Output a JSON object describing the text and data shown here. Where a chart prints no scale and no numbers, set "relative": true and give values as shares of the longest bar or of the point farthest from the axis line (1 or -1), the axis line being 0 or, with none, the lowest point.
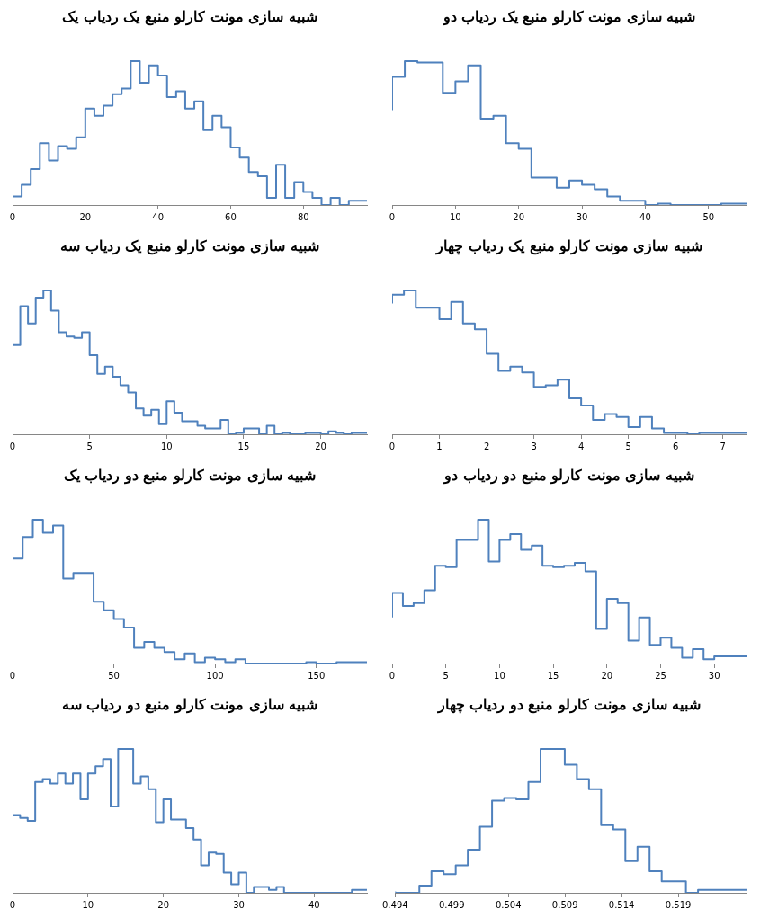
{
  "chart_data": [
    {
      "type": "step",
      "title": "شبیه سازی مونت کارلو منبع یک ردیاب یک",
      "relative": true,
      "color": "#4f81bd",
      "xlim": [
        0,
        97.5
      ],
      "xticks": [
        0,
        20,
        40,
        60,
        80
      ],
      "x": [
        0,
        2.5,
        5,
        7.5,
        10,
        12.5,
        15,
        17.5,
        20,
        22.5,
        25,
        27.5,
        30,
        32.5,
        35,
        37.5,
        40,
        42.5,
        45,
        47.5,
        50,
        52.5,
        55,
        57.5,
        60,
        62.5,
        65,
        67.5,
        70,
        72.5,
        75,
        77.5,
        80,
        82.5,
        85,
        87.5,
        90,
        92.5,
        95,
        97.5
      ],
      "values": [
        0.12,
        0.06,
        0.14,
        0.25,
        0.43,
        0.31,
        0.41,
        0.39,
        0.47,
        0.67,
        0.62,
        0.69,
        0.77,
        0.81,
        1,
        0.85,
        0.97,
        0.9,
        0.75,
        0.79,
        0.67,
        0.72,
        0.52,
        0.62,
        0.54,
        0.4,
        0.33,
        0.23,
        0.2,
        0.05,
        0.28,
        0.05,
        0.16,
        0.09,
        0.05,
        0,
        0.05,
        0,
        0.03,
        0.03
      ]
    },
    {
      "type": "step",
      "title": "شبیه سازی مونت کارلو منبع یک ردیاب دو",
      "relative": true,
      "color": "#4f81bd",
      "xlim": [
        0,
        56
      ],
      "xticks": [
        0,
        10,
        20,
        30,
        40,
        50
      ],
      "x": [
        0,
        2,
        4,
        6,
        8,
        10,
        12,
        14,
        16,
        18,
        20,
        22,
        24,
        26,
        28,
        30,
        32,
        34,
        36,
        38,
        40,
        42,
        44,
        46,
        48,
        50,
        52,
        54,
        56
      ],
      "values": [
        0.66,
        0.89,
        1,
        0.99,
        0.99,
        0.78,
        0.86,
        0.97,
        0.6,
        0.62,
        0.43,
        0.39,
        0.19,
        0.19,
        0.12,
        0.17,
        0.14,
        0.11,
        0.06,
        0.03,
        0.03,
        0,
        0.01,
        0,
        0,
        0,
        0,
        0.01,
        0.01
      ]
    },
    {
      "type": "step",
      "title": "شبیه سازی مونت کارلو منبع یک ردیاب سه",
      "relative": true,
      "color": "#4f81bd",
      "xlim": [
        0,
        23
      ],
      "xticks": [
        0,
        5,
        10,
        15,
        20
      ],
      "x": [
        0,
        0.5,
        1,
        1.5,
        2,
        2.5,
        3,
        3.5,
        4,
        4.5,
        5,
        5.5,
        6,
        6.5,
        7,
        7.5,
        8,
        8.5,
        9,
        9.5,
        10,
        10.5,
        11,
        11.5,
        12,
        12.5,
        13,
        13.5,
        14,
        14.5,
        15,
        15.5,
        16,
        16.5,
        17,
        17.5,
        18,
        18.5,
        19,
        19.5,
        20,
        20.5,
        21,
        21.5,
        22,
        22.5,
        23
      ],
      "values": [
        0.29,
        0.62,
        0.89,
        0.77,
        0.95,
        1,
        0.86,
        0.71,
        0.68,
        0.67,
        0.71,
        0.55,
        0.42,
        0.47,
        0.4,
        0.34,
        0.29,
        0.18,
        0.13,
        0.17,
        0.07,
        0.23,
        0.15,
        0.09,
        0.09,
        0.06,
        0.04,
        0.04,
        0.1,
        0,
        0.01,
        0.04,
        0.04,
        0,
        0.06,
        0,
        0.01,
        0,
        0,
        0.01,
        0.01,
        0,
        0.02,
        0.01,
        0,
        0.01,
        0.01
      ]
    },
    {
      "type": "step",
      "title": "شبیه سازی مونت کارلو منبع یک ردیاب چهار",
      "relative": true,
      "color": "#4f81bd",
      "xlim": [
        0,
        7.5
      ],
      "xticks": [
        0,
        1,
        2,
        3,
        4,
        5,
        6,
        7
      ],
      "x": [
        0,
        0.25,
        0.5,
        0.75,
        1,
        1.25,
        1.5,
        1.75,
        2,
        2.25,
        2.5,
        2.75,
        3,
        3.25,
        3.5,
        3.75,
        4,
        4.25,
        4.5,
        4.75,
        5,
        5.25,
        5.5,
        5.75,
        6,
        6.25,
        6.5,
        6.75,
        7,
        7.25,
        7.5
      ],
      "values": [
        0.91,
        0.97,
        1,
        0.88,
        0.88,
        0.8,
        0.92,
        0.77,
        0.73,
        0.56,
        0.44,
        0.47,
        0.43,
        0.33,
        0.34,
        0.38,
        0.25,
        0.2,
        0.1,
        0.14,
        0.12,
        0.05,
        0.12,
        0.04,
        0.01,
        0.01,
        0,
        0.01,
        0.01,
        0.01,
        0.01
      ]
    },
    {
      "type": "step",
      "title": "شبیه سازی مونت کارلو منبع دو ردیاب یک",
      "relative": true,
      "color": "#4f81bd",
      "xlim": [
        0,
        175
      ],
      "xticks": [
        0,
        50,
        100,
        150
      ],
      "x": [
        0,
        5,
        10,
        15,
        20,
        25,
        30,
        35,
        40,
        45,
        50,
        55,
        60,
        65,
        70,
        75,
        80,
        85,
        90,
        95,
        100,
        105,
        110,
        115,
        120,
        125,
        130,
        135,
        140,
        145,
        150,
        155,
        160,
        165,
        170,
        175
      ],
      "values": [
        0.23,
        0.73,
        0.88,
        1,
        0.91,
        0.96,
        0.59,
        0.63,
        0.63,
        0.43,
        0.37,
        0.31,
        0.25,
        0.11,
        0.15,
        0.11,
        0.08,
        0.03,
        0.07,
        0.01,
        0.04,
        0.03,
        0.01,
        0.03,
        0,
        0,
        0,
        0,
        0,
        0,
        0.01,
        0,
        0,
        0.01,
        0.01,
        0.01
      ]
    },
    {
      "type": "step",
      "title": "شبیه سازی مونت کارلو منبع دو ردیاب دو",
      "relative": true,
      "color": "#4f81bd",
      "xlim": [
        0,
        33
      ],
      "xticks": [
        0,
        5,
        10,
        15,
        20,
        25,
        30
      ],
      "x": [
        0,
        1,
        2,
        3,
        4,
        5,
        6,
        7,
        8,
        9,
        10,
        11,
        12,
        13,
        14,
        15,
        16,
        17,
        18,
        19,
        20,
        21,
        22,
        23,
        24,
        25,
        26,
        27,
        28,
        29,
        30,
        31,
        32,
        33
      ],
      "values": [
        0.32,
        0.49,
        0.4,
        0.42,
        0.51,
        0.68,
        0.67,
        0.86,
        0.86,
        1,
        0.71,
        0.86,
        0.9,
        0.79,
        0.82,
        0.68,
        0.67,
        0.68,
        0.7,
        0.64,
        0.24,
        0.45,
        0.42,
        0.16,
        0.32,
        0.13,
        0.18,
        0.11,
        0.04,
        0.1,
        0.03,
        0.05,
        0.05,
        0.05
      ]
    },
    {
      "type": "step",
      "title": "شبیه سازی مونت کارلو منبع دو ردیاب سه",
      "relative": true,
      "color": "#4f81bd",
      "xlim": [
        0,
        47
      ],
      "xticks": [
        0,
        10,
        20,
        30,
        40
      ],
      "x": [
        0,
        1,
        2,
        3,
        4,
        5,
        6,
        7,
        8,
        9,
        10,
        11,
        12,
        13,
        14,
        15,
        16,
        17,
        18,
        19,
        20,
        21,
        22,
        23,
        24,
        25,
        26,
        27,
        28,
        29,
        30,
        31,
        32,
        33,
        34,
        35,
        36,
        37,
        38,
        39,
        40,
        41,
        42,
        43,
        44,
        45,
        46,
        47
      ],
      "values": [
        0.6,
        0.54,
        0.52,
        0.5,
        0.77,
        0.79,
        0.76,
        0.83,
        0.76,
        0.83,
        0.65,
        0.83,
        0.88,
        0.93,
        0.6,
        1,
        1,
        0.76,
        0.81,
        0.72,
        0.49,
        0.65,
        0.51,
        0.51,
        0.45,
        0.37,
        0.19,
        0.28,
        0.27,
        0.14,
        0.06,
        0.14,
        0,
        0.04,
        0.04,
        0.02,
        0.04,
        0,
        0,
        0,
        0,
        0,
        0,
        0,
        0,
        0,
        0.02,
        0.02
      ]
    },
    {
      "type": "step",
      "title": "شبیه سازی مونت کارلو منبع دو ردیاب چهار",
      "relative": true,
      "color": "#4f81bd",
      "xlim": [
        0.494,
        0.52503
      ],
      "xticks": [
        0.494,
        0.499,
        0.504,
        0.509,
        0.514,
        0.519
      ],
      "x": [
        0.494,
        0.49507,
        0.49614,
        0.49721,
        0.49828,
        0.49935,
        0.50042,
        0.50149,
        0.50256,
        0.50363,
        0.5047,
        0.50577,
        0.50684,
        0.50791,
        0.50898,
        0.51005,
        0.51112,
        0.51219,
        0.51326,
        0.51433,
        0.5154,
        0.51647,
        0.51754,
        0.51861,
        0.51968,
        0.52075,
        0.52182,
        0.52289,
        0.52396,
        0.52503
      ],
      "values": [
        0.01,
        0,
        0,
        0.05,
        0.15,
        0.13,
        0.19,
        0.3,
        0.46,
        0.64,
        0.66,
        0.65,
        0.77,
        1,
        1,
        0.89,
        0.79,
        0.72,
        0.47,
        0.44,
        0.22,
        0.32,
        0.15,
        0.08,
        0.08,
        0,
        0.02,
        0.02,
        0.02,
        0.02
      ]
    }
  ]
}
